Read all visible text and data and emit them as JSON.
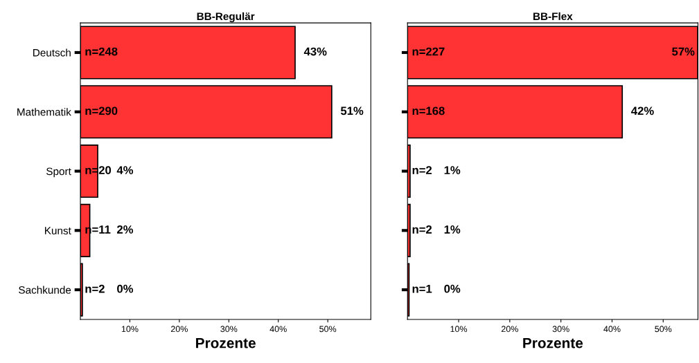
{
  "chart_data": [
    {
      "type": "bar",
      "orientation": "horizontal",
      "title": "BB-Regulär",
      "xlabel": "Prozente",
      "categories": [
        "Deutsch",
        "Mathematik",
        "Sport",
        "Kunst",
        "Sachkunde"
      ],
      "values": [
        43.4,
        50.8,
        3.5,
        1.9,
        0.4
      ],
      "color": "#ff3333",
      "value_labels": [
        "43%",
        "51%",
        "4%",
        "2%",
        "0%"
      ],
      "annotations": [
        "n=248",
        "n=290",
        "n=20",
        "n=11",
        "n=2"
      ],
      "xlim": [
        0,
        58.7
      ],
      "xticks": [
        {
          "value": 10,
          "label": "10%"
        },
        {
          "value": 20,
          "label": "20%"
        },
        {
          "value": 30,
          "label": "30%"
        },
        {
          "value": 40,
          "label": "40%"
        },
        {
          "value": 50,
          "label": "50%"
        }
      ],
      "grid": false,
      "legend": false
    },
    {
      "type": "bar",
      "orientation": "horizontal",
      "title": "BB-Flex",
      "xlabel": "Prozente",
      "values": [
        56.75,
        42,
        0.5,
        0.5,
        0.3
      ],
      "color": "#ff3333",
      "value_labels": [
        "57%",
        "42%",
        "1%",
        "1%",
        "0%"
      ],
      "annotations": [
        "n=227",
        "n=168",
        "n=2",
        "n=2",
        "n=1"
      ],
      "xlim": [
        0,
        56.8
      ],
      "xticks": [
        {
          "value": 10,
          "label": "10%"
        },
        {
          "value": 20,
          "label": "20%"
        },
        {
          "value": 30,
          "label": "30%"
        },
        {
          "value": 40,
          "label": "40%"
        },
        {
          "value": 50,
          "label": "50%"
        }
      ],
      "tick_labels": "x",
      "grid": false,
      "legend": false
    }
  ]
}
